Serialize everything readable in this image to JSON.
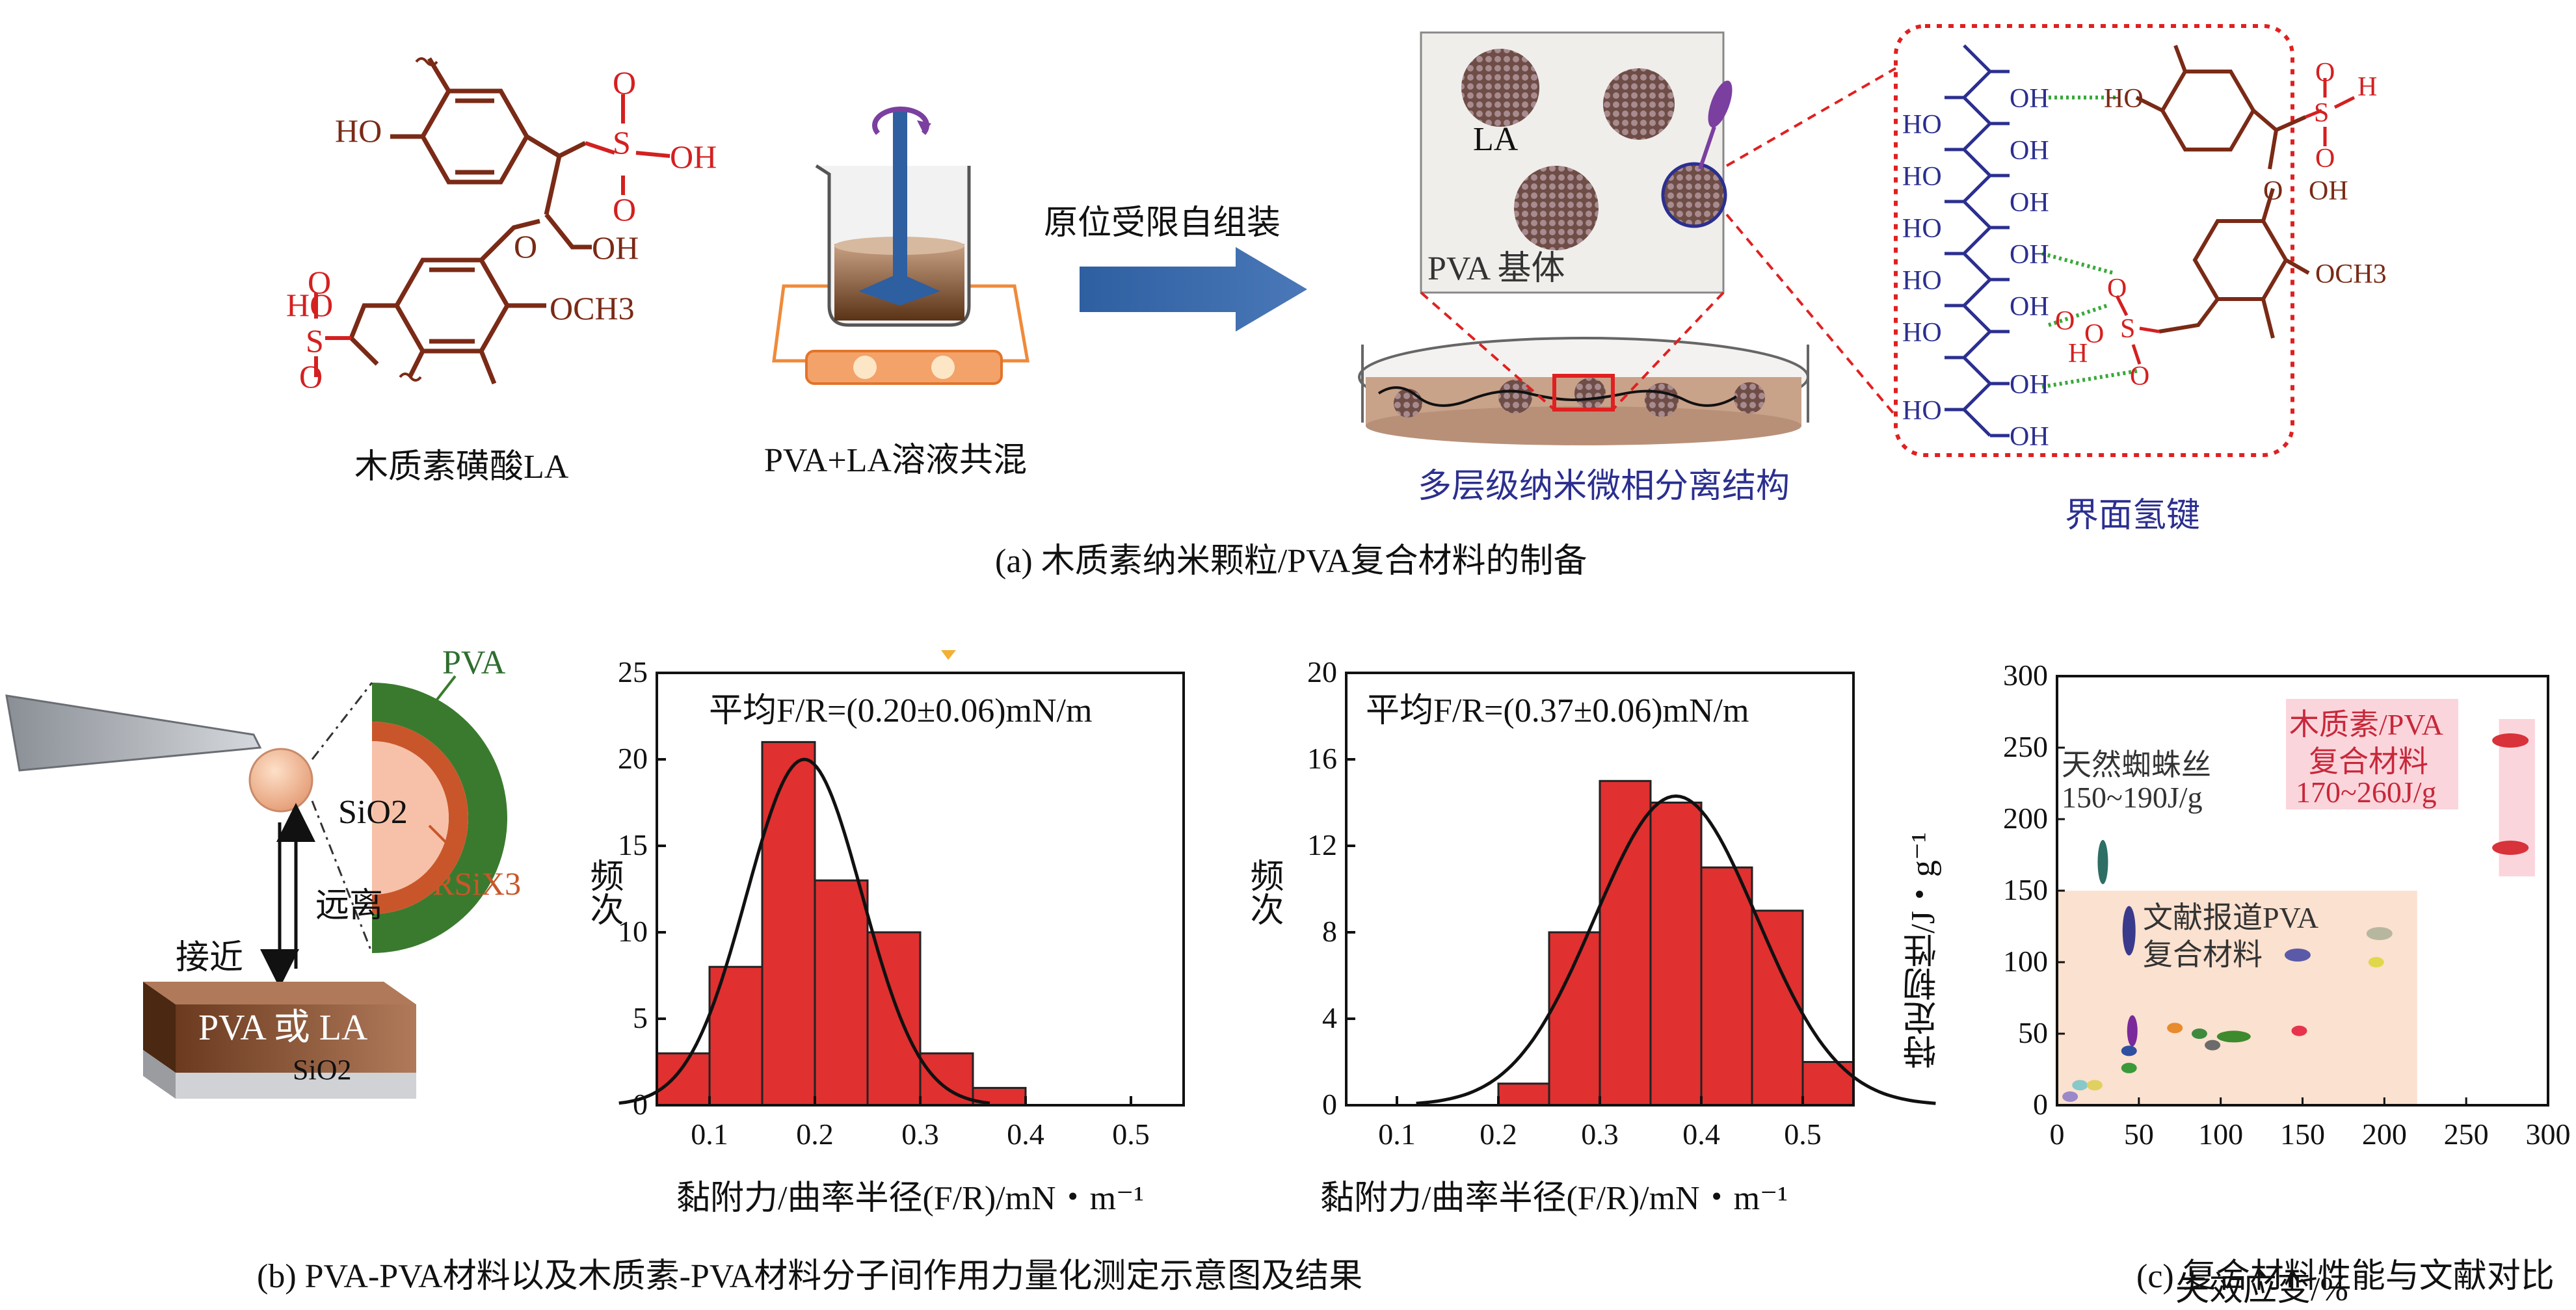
{
  "panel_a": {
    "caption": "(a) 木质素纳米颗粒/PVA复合材料的制备",
    "la_molecule": {
      "label": "木质素磺酸LA",
      "groups": [
        "HO",
        "S",
        "O",
        "O",
        "OH",
        "O",
        "OH",
        "HO",
        "S",
        "O",
        "O",
        "OCH3"
      ]
    },
    "mixing": {
      "label": "PVA+LA溶液共混"
    },
    "arrow_text": "原位受限自组装",
    "film": {
      "la_label": "LA",
      "matrix_label": "PVA 基体",
      "structure_label": "多层级纳米微相分离结构"
    },
    "interface": {
      "caption": "界面氢键",
      "pva_groups": [
        "OH",
        "HO",
        "OH",
        "HO",
        "OH",
        "HO",
        "OH",
        "HO",
        "OH",
        "HO",
        "OH",
        "HO",
        "OH"
      ],
      "la_groups": [
        "HO",
        "S",
        "O",
        "O",
        "H",
        "O",
        "OH",
        "OCH3",
        "O",
        "S",
        "O",
        "O",
        "H",
        "O"
      ]
    }
  },
  "panel_b": {
    "caption": "(b) PVA-PVA材料以及木质素-PVA材料分子间作用力量化测定示意图及结果",
    "schematic": {
      "probe_label": "SiO2",
      "shell_outer": "PVA",
      "shell_inner": "RSiX3",
      "approach": "接近",
      "retract": "远离",
      "substrate": "PVA 或 LA",
      "substrate_base": "SiO2"
    }
  },
  "panel_c": {
    "caption": "(c) 复合材料性能与文献对比"
  },
  "chart_data": [
    {
      "type": "bar",
      "title": "平均F/R=(0.20±0.06)mN/m",
      "xlabel": "黏附力/曲率半径(F/R)/mN・m⁻¹",
      "ylabel": "频次",
      "bin_width": 0.05,
      "categories": [
        0.075,
        0.125,
        0.175,
        0.225,
        0.275,
        0.325,
        0.375
      ],
      "values": [
        3,
        8,
        21,
        13,
        10,
        3,
        1
      ],
      "xlim": [
        0.05,
        0.55
      ],
      "ylim": [
        0,
        25
      ],
      "xticks": [
        "0.1",
        "0.2",
        "0.3",
        "0.4",
        "0.5"
      ],
      "yticks": [
        "0",
        "5",
        "10",
        "15",
        "20",
        "25"
      ],
      "fit": {
        "type": "gaussian",
        "mean": 0.19,
        "sigma": 0.055,
        "peak": 20
      }
    },
    {
      "type": "bar",
      "title": "平均F/R=(0.37±0.06)mN/m",
      "xlabel": "黏附力/曲率半径(F/R)/mN・m⁻¹",
      "ylabel": "频次",
      "bin_width": 0.05,
      "categories": [
        0.225,
        0.275,
        0.325,
        0.375,
        0.425,
        0.475,
        0.525
      ],
      "values": [
        1,
        8,
        15,
        14,
        11,
        9,
        2
      ],
      "xlim": [
        0.05,
        0.55
      ],
      "ylim": [
        0,
        20
      ],
      "xticks": [
        "0.1",
        "0.2",
        "0.3",
        "0.4",
        "0.5"
      ],
      "yticks": [
        "0",
        "4",
        "8",
        "12",
        "16",
        "20"
      ],
      "fit": {
        "type": "gaussian",
        "mean": 0.375,
        "sigma": 0.08,
        "peak": 14.3
      }
    },
    {
      "type": "scatter",
      "title": "",
      "xlabel": "失效应变/%",
      "ylabel": "特定韧性/J・g⁻¹",
      "xlim": [
        0,
        300
      ],
      "ylim": [
        0,
        300
      ],
      "xticks": [
        "0",
        "50",
        "100",
        "150",
        "200",
        "250",
        "300"
      ],
      "yticks": [
        "0",
        "50",
        "100",
        "150",
        "200",
        "250",
        "300"
      ],
      "regions": [
        {
          "name": "文献报道PVA复合材料",
          "x": [
            0,
            220
          ],
          "y": [
            0,
            150
          ],
          "color": "#fbe1cf"
        },
        {
          "name": "木质素/PVA复合材料",
          "x": [
            270,
            292
          ],
          "y": [
            160,
            270
          ],
          "color": "#fbd5dc"
        }
      ],
      "annotations": [
        {
          "text": "天然蜘蛛丝",
          "note": "150~190J/g"
        },
        {
          "text": "文献报道PVA",
          "note": "复合材料"
        },
        {
          "text": "木质素/PVA",
          "note": "复合材料",
          "range": "170~260J/g"
        }
      ],
      "points": [
        {
          "x": 28,
          "y": 170,
          "color": "#2e6e64"
        },
        {
          "x": 44,
          "y": 122,
          "color": "#3a3a8c"
        },
        {
          "x": 147,
          "y": 105,
          "color": "#5a5aa8"
        },
        {
          "x": 197,
          "y": 120,
          "color": "#b7b7a0"
        },
        {
          "x": 195,
          "y": 100,
          "color": "#e0d84a"
        },
        {
          "x": 46,
          "y": 52,
          "color": "#7a2a9a"
        },
        {
          "x": 72,
          "y": 54,
          "color": "#e88a2e"
        },
        {
          "x": 87,
          "y": 50,
          "color": "#3f8a3f"
        },
        {
          "x": 108,
          "y": 48,
          "color": "#3d8b2e"
        },
        {
          "x": 148,
          "y": 52,
          "color": "#e8334c"
        },
        {
          "x": 95,
          "y": 42,
          "color": "#6b6b6b"
        },
        {
          "x": 44,
          "y": 38,
          "color": "#2f4fa0"
        },
        {
          "x": 44,
          "y": 26,
          "color": "#3a9a3a"
        },
        {
          "x": 14,
          "y": 14,
          "color": "#88c8c8"
        },
        {
          "x": 23,
          "y": 14,
          "color": "#e0d060"
        },
        {
          "x": 8,
          "y": 6,
          "color": "#9a88c8"
        },
        {
          "x": 277,
          "y": 255,
          "color": "#d8323a"
        },
        {
          "x": 277,
          "y": 180,
          "color": "#d8323a"
        }
      ]
    }
  ]
}
